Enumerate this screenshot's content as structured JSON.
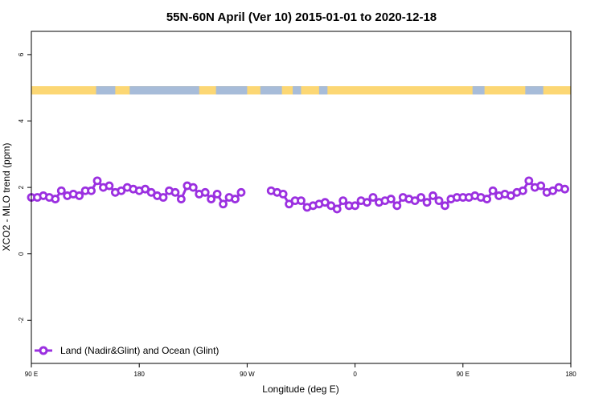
{
  "chart_data": {
    "type": "line",
    "title": "55N-60N April (Ver 10)   2015-01-01 to 2020-12-18",
    "xlabel": "Longitude (deg E)",
    "ylabel": "XCO2 - MLO trend (ppm)",
    "x_tick_labels": [
      "90 E",
      "180",
      "90 W",
      "0",
      "90 E",
      "180"
    ],
    "y_ticks": [
      -2,
      0,
      2,
      4,
      6
    ],
    "ylim": [
      -3.3,
      6.7
    ],
    "grid": false,
    "legend_position": "bottom-left",
    "series": [
      {
        "name": "Land (Nadir&Glint) and Ocean (Glint)",
        "color": "#9b30e0",
        "segments": [
          [
            {
              "x": 90,
              "y": 1.7
            },
            {
              "x": 95,
              "y": 1.7
            },
            {
              "x": 100,
              "y": 1.75
            },
            {
              "x": 105,
              "y": 1.7
            },
            {
              "x": 110,
              "y": 1.65
            },
            {
              "x": 115,
              "y": 1.9
            },
            {
              "x": 120,
              "y": 1.75
            },
            {
              "x": 125,
              "y": 1.8
            },
            {
              "x": 130,
              "y": 1.75
            },
            {
              "x": 135,
              "y": 1.9
            },
            {
              "x": 140,
              "y": 1.9
            },
            {
              "x": 145,
              "y": 2.2
            },
            {
              "x": 150,
              "y": 2.0
            },
            {
              "x": 155,
              "y": 2.05
            },
            {
              "x": 160,
              "y": 1.85
            },
            {
              "x": 165,
              "y": 1.9
            },
            {
              "x": 170,
              "y": 2.0
            },
            {
              "x": 175,
              "y": 1.95
            },
            {
              "x": 180,
              "y": 1.9
            },
            {
              "x": 185,
              "y": 1.95
            },
            {
              "x": 190,
              "y": 1.85
            },
            {
              "x": 195,
              "y": 1.75
            },
            {
              "x": 200,
              "y": 1.7
            },
            {
              "x": 205,
              "y": 1.9
            },
            {
              "x": 210,
              "y": 1.85
            },
            {
              "x": 215,
              "y": 1.65
            },
            {
              "x": 220,
              "y": 2.05
            },
            {
              "x": 225,
              "y": 2.0
            },
            {
              "x": 230,
              "y": 1.8
            },
            {
              "x": 235,
              "y": 1.85
            },
            {
              "x": 240,
              "y": 1.65
            },
            {
              "x": 245,
              "y": 1.8
            },
            {
              "x": 250,
              "y": 1.5
            },
            {
              "x": 255,
              "y": 1.7
            },
            {
              "x": 260,
              "y": 1.65
            },
            {
              "x": 265,
              "y": 1.85
            }
          ],
          [
            {
              "x": 290,
              "y": 1.9
            },
            {
              "x": 295,
              "y": 1.85
            },
            {
              "x": 300,
              "y": 1.8
            },
            {
              "x": 305,
              "y": 1.5
            },
            {
              "x": 310,
              "y": 1.6
            },
            {
              "x": 315,
              "y": 1.6
            },
            {
              "x": 320,
              "y": 1.4
            },
            {
              "x": 325,
              "y": 1.45
            },
            {
              "x": 330,
              "y": 1.5
            },
            {
              "x": 335,
              "y": 1.55
            },
            {
              "x": 340,
              "y": 1.45
            },
            {
              "x": 345,
              "y": 1.35
            },
            {
              "x": 350,
              "y": 1.6
            },
            {
              "x": 355,
              "y": 1.45
            },
            {
              "x": 360,
              "y": 1.45
            },
            {
              "x": 365,
              "y": 1.6
            },
            {
              "x": 370,
              "y": 1.55
            },
            {
              "x": 375,
              "y": 1.7
            },
            {
              "x": 380,
              "y": 1.55
            },
            {
              "x": 385,
              "y": 1.6
            },
            {
              "x": 390,
              "y": 1.65
            },
            {
              "x": 395,
              "y": 1.45
            },
            {
              "x": 400,
              "y": 1.7
            },
            {
              "x": 405,
              "y": 1.65
            },
            {
              "x": 410,
              "y": 1.6
            },
            {
              "x": 415,
              "y": 1.7
            },
            {
              "x": 420,
              "y": 1.55
            },
            {
              "x": 425,
              "y": 1.75
            },
            {
              "x": 430,
              "y": 1.6
            },
            {
              "x": 435,
              "y": 1.45
            },
            {
              "x": 440,
              "y": 1.65
            },
            {
              "x": 445,
              "y": 1.7
            },
            {
              "x": 450,
              "y": 1.7
            },
            {
              "x": 455,
              "y": 1.7
            },
            {
              "x": 460,
              "y": 1.75
            },
            {
              "x": 465,
              "y": 1.7
            },
            {
              "x": 470,
              "y": 1.65
            },
            {
              "x": 475,
              "y": 1.9
            },
            {
              "x": 480,
              "y": 1.75
            },
            {
              "x": 485,
              "y": 1.8
            },
            {
              "x": 490,
              "y": 1.75
            },
            {
              "x": 495,
              "y": 1.85
            },
            {
              "x": 500,
              "y": 1.9
            },
            {
              "x": 505,
              "y": 2.2
            },
            {
              "x": 510,
              "y": 2.0
            },
            {
              "x": 515,
              "y": 2.05
            },
            {
              "x": 520,
              "y": 1.85
            },
            {
              "x": 525,
              "y": 1.9
            },
            {
              "x": 530,
              "y": 2.0
            },
            {
              "x": 535,
              "y": 1.95
            }
          ]
        ]
      }
    ],
    "land_ocean_band": {
      "y_range": [
        4.8,
        5.05
      ],
      "land_color": "#fcd774",
      "ocean_color": "#a7bcd9",
      "ocean_intervals": [
        [
          144,
          160
        ],
        [
          172,
          230
        ],
        [
          244,
          270
        ],
        [
          281,
          299
        ],
        [
          308,
          315
        ],
        [
          330,
          337
        ],
        [
          458,
          468
        ],
        [
          502,
          517
        ]
      ]
    }
  }
}
